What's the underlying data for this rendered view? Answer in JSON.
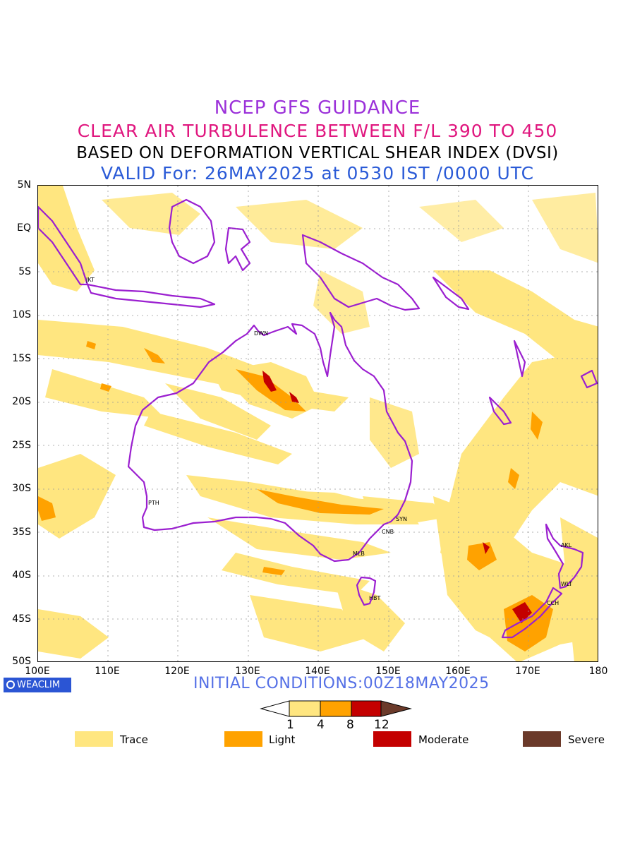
{
  "header": {
    "line1": "NCEP GFS GUIDANCE",
    "line2": "CLEAR AIR TURBULENCE BETWEEN F/L 390 TO 450",
    "line3": "BASED ON DEFORMATION VERTICAL SHEAR INDEX (DVSI)",
    "line4": "VALID For: 26MAY2025 at 0530 IST /0000 UTC"
  },
  "map": {
    "lon_range": [
      100,
      180
    ],
    "lat_range": [
      -50,
      5
    ],
    "grid": true,
    "lat_labels": [
      "5N",
      "EQ",
      "5S",
      "10S",
      "15S",
      "20S",
      "25S",
      "30S",
      "35S",
      "40S",
      "45S",
      "50S"
    ],
    "lon_labels": [
      "100E",
      "110E",
      "120E",
      "130E",
      "140E",
      "150E",
      "160E",
      "170E",
      "180"
    ],
    "cities": [
      {
        "code": "JKT",
        "lon": 106.8,
        "lat": -6.2
      },
      {
        "code": "DWN",
        "lon": 130.8,
        "lat": -12.4
      },
      {
        "code": "PTH",
        "lon": 115.9,
        "lat": -31.9
      },
      {
        "code": "SYN",
        "lon": 151.2,
        "lat": -33.9
      },
      {
        "code": "CNB",
        "lon": 149.1,
        "lat": -35.3
      },
      {
        "code": "MLB",
        "lon": 144.9,
        "lat": -37.8
      },
      {
        "code": "HBT",
        "lon": 147.3,
        "lat": -42.9
      },
      {
        "code": "AKL",
        "lon": 174.8,
        "lat": -36.9
      },
      {
        "code": "WLT",
        "lon": 174.8,
        "lat": -41.3
      },
      {
        "code": "CCH",
        "lon": 172.6,
        "lat": -43.5
      }
    ]
  },
  "footer": {
    "logo": "WEACLIM",
    "initial": "INITIAL CONDITIONS:00Z18MAY2025"
  },
  "colorbar": {
    "levels": [
      "1",
      "4",
      "8",
      "12"
    ],
    "colors": [
      "#ffe680",
      "#ffa200",
      "#c40000",
      "#6b3a2a"
    ]
  },
  "legend": [
    {
      "label": "Trace",
      "color": "#ffe680"
    },
    {
      "label": "Light",
      "color": "#ffa200"
    },
    {
      "label": "Moderate",
      "color": "#c40000"
    },
    {
      "label": "Severe",
      "color": "#6b3a2a"
    }
  ],
  "colors": {
    "coast": "#9b1fd0",
    "trace": "#ffe680",
    "light": "#ffa200",
    "moderate": "#c40000",
    "severe": "#6b3a2a"
  }
}
